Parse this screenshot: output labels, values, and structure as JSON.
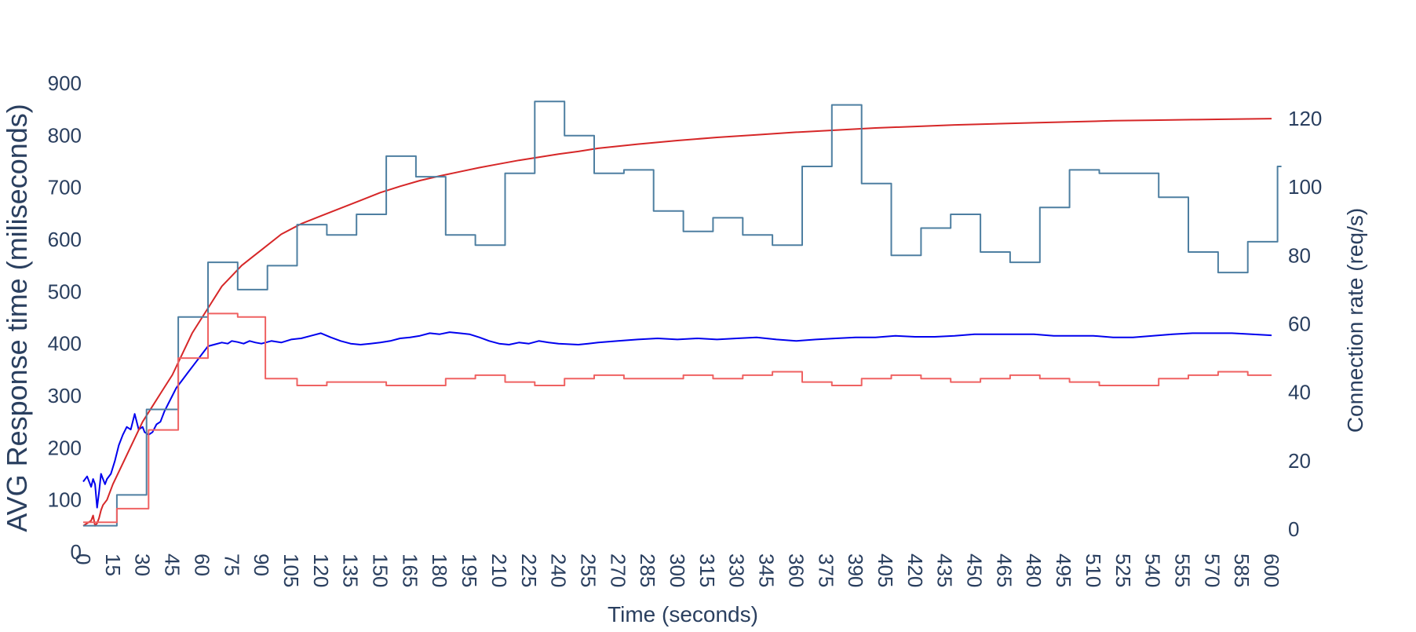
{
  "chart_data": {
    "type": "line",
    "xlabel": "Time (seconds)",
    "ylabel": "AVG Response time (miliseconds)",
    "y2label": "Connection rate (req/s)",
    "xlim": [
      0,
      600
    ],
    "ylim": [
      0,
      900
    ],
    "y2lim": [
      0,
      120
    ],
    "grid": false,
    "legend": "none",
    "x_ticks": [
      0,
      15,
      30,
      45,
      60,
      75,
      90,
      105,
      120,
      135,
      150,
      165,
      180,
      195,
      210,
      225,
      240,
      255,
      270,
      285,
      300,
      315,
      330,
      345,
      360,
      375,
      390,
      405,
      420,
      435,
      450,
      465,
      480,
      495,
      510,
      525,
      540,
      555,
      570,
      585,
      600
    ],
    "y_ticks": [
      0,
      100,
      200,
      300,
      400,
      500,
      600,
      700,
      800,
      900
    ],
    "y2_ticks": [
      0,
      20,
      40,
      60,
      80,
      100,
      120
    ],
    "series": [
      {
        "axis": "y",
        "color": "#0000ee",
        "shape": "linear",
        "x": [
          0,
          2,
          4,
          5,
          6,
          7,
          8,
          9,
          10,
          11,
          12,
          14,
          16,
          18,
          20,
          22,
          24,
          26,
          28,
          30,
          31,
          33,
          35,
          37,
          39,
          41,
          43,
          45,
          47,
          50,
          53,
          56,
          60,
          63,
          66,
          70,
          73,
          75,
          78,
          81,
          84,
          87,
          90,
          95,
          100,
          105,
          110,
          115,
          120,
          125,
          130,
          135,
          140,
          145,
          150,
          155,
          160,
          165,
          170,
          175,
          180,
          185,
          190,
          195,
          200,
          205,
          210,
          215,
          220,
          225,
          230,
          235,
          240,
          250,
          255,
          260,
          270,
          280,
          290,
          300,
          310,
          320,
          330,
          340,
          350,
          360,
          370,
          380,
          390,
          400,
          410,
          420,
          430,
          440,
          450,
          460,
          470,
          480,
          490,
          500,
          510,
          520,
          530,
          540,
          550,
          560,
          570,
          580,
          590,
          600
        ],
        "values": [
          135,
          145,
          125,
          140,
          130,
          85,
          115,
          150,
          140,
          130,
          140,
          150,
          175,
          205,
          225,
          240,
          235,
          265,
          235,
          240,
          230,
          225,
          230,
          245,
          250,
          270,
          285,
          300,
          315,
          330,
          345,
          360,
          380,
          395,
          398,
          402,
          400,
          405,
          403,
          400,
          405,
          402,
          400,
          405,
          402,
          408,
          410,
          415,
          420,
          412,
          405,
          400,
          398,
          400,
          402,
          405,
          410,
          412,
          415,
          420,
          418,
          422,
          420,
          418,
          412,
          405,
          400,
          398,
          402,
          400,
          405,
          402,
          400,
          398,
          400,
          402,
          405,
          408,
          410,
          408,
          410,
          408,
          410,
          412,
          408,
          405,
          408,
          410,
          412,
          412,
          415,
          413,
          413,
          415,
          418,
          418,
          418,
          418,
          415,
          415,
          415,
          412,
          412,
          415,
          418,
          420,
          420,
          420,
          418,
          416
        ]
      },
      {
        "axis": "y",
        "color": "#d62728",
        "shape": "linear",
        "x": [
          0,
          2,
          4,
          5,
          6,
          7,
          8,
          9,
          10,
          12,
          15,
          20,
          25,
          30,
          35,
          40,
          45,
          50,
          55,
          60,
          65,
          70,
          75,
          80,
          85,
          90,
          100,
          110,
          120,
          130,
          140,
          150,
          160,
          170,
          180,
          190,
          200,
          210,
          220,
          230,
          240,
          250,
          260,
          280,
          300,
          320,
          340,
          360,
          380,
          400,
          420,
          440,
          460,
          480,
          500,
          520,
          540,
          560,
          580,
          600
        ],
        "values": [
          50,
          55,
          60,
          70,
          50,
          55,
          65,
          80,
          90,
          100,
          130,
          170,
          210,
          250,
          280,
          310,
          340,
          380,
          420,
          450,
          480,
          510,
          530,
          550,
          565,
          580,
          610,
          630,
          645,
          660,
          675,
          690,
          702,
          713,
          722,
          730,
          738,
          745,
          752,
          758,
          764,
          769,
          775,
          783,
          790,
          796,
          801,
          806,
          810,
          814,
          817,
          820,
          822,
          824,
          826,
          828,
          829,
          830,
          831,
          832
        ]
      },
      {
        "axis": "y2",
        "color": "#4e7fa1",
        "shape": "step",
        "x": [
          0,
          5,
          17,
          32,
          48,
          63,
          78,
          93,
          108,
          123,
          138,
          153,
          168,
          183,
          198,
          213,
          228,
          243,
          258,
          273,
          288,
          303,
          318,
          333,
          348,
          363,
          378,
          393,
          408,
          423,
          438,
          453,
          468,
          483,
          498,
          513,
          528,
          543,
          558,
          573,
          588,
          603,
          605
        ],
        "values": [
          1,
          1,
          10,
          35,
          62,
          78,
          70,
          77,
          89,
          86,
          92,
          109,
          103,
          86,
          83,
          104,
          125,
          115,
          104,
          105,
          93,
          87,
          91,
          86,
          83,
          106,
          124,
          101,
          80,
          88,
          92,
          81,
          78,
          94,
          105,
          104,
          104,
          97,
          81,
          75,
          84,
          106,
          106
        ]
      },
      {
        "axis": "y2",
        "color": "#ef6262",
        "shape": "step",
        "x": [
          0,
          4,
          17,
          33,
          48,
          63,
          78,
          92,
          108,
          123,
          138,
          153,
          168,
          183,
          198,
          213,
          228,
          243,
          258,
          273,
          288,
          303,
          318,
          333,
          348,
          363,
          378,
          393,
          408,
          423,
          438,
          453,
          468,
          483,
          498,
          513,
          528,
          543,
          558,
          573,
          588,
          600
        ],
        "values": [
          2,
          2,
          6,
          29,
          50,
          63,
          62,
          44,
          42,
          43,
          43,
          42,
          42,
          44,
          45,
          43,
          42,
          44,
          45,
          44,
          44,
          45,
          44,
          45,
          46,
          43,
          42,
          44,
          45,
          44,
          43,
          44,
          45,
          44,
          43,
          42,
          42,
          44,
          45,
          46,
          45,
          45
        ]
      }
    ]
  }
}
